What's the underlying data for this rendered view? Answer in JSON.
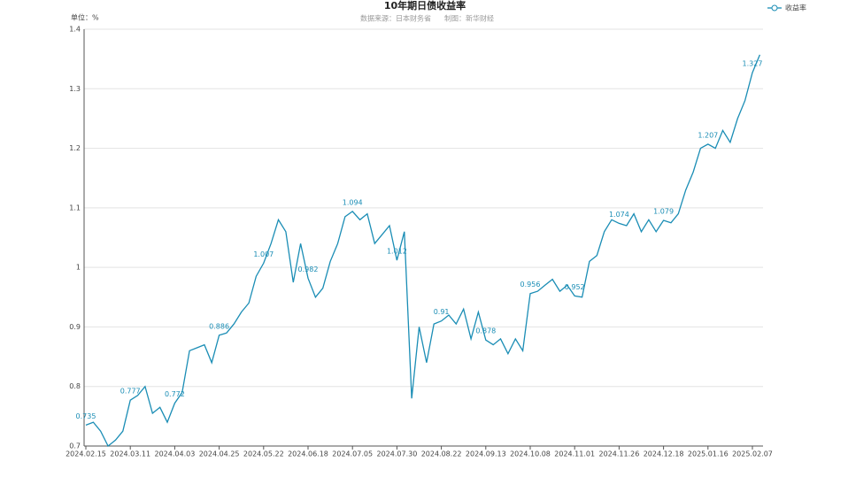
{
  "chart_data": {
    "type": "line",
    "title": "10年期日债收益率",
    "source": "数据来源：日本财务省",
    "credit": "制图：新华财经",
    "unit": "单位：%",
    "categories": [
      "2024.02.15",
      null,
      null,
      null,
      null,
      null,
      "2024.03.11",
      null,
      null,
      null,
      null,
      null,
      "2024.04.03",
      null,
      null,
      null,
      null,
      null,
      "2024.04.25",
      null,
      null,
      null,
      null,
      null,
      "2024.05.22",
      null,
      null,
      null,
      null,
      null,
      "2024.06.18",
      null,
      null,
      null,
      null,
      null,
      "2024.07.05",
      null,
      null,
      null,
      null,
      null,
      "2024.07.30",
      null,
      null,
      null,
      null,
      null,
      "2024.08.22",
      null,
      null,
      null,
      null,
      null,
      "2024.09.13",
      null,
      null,
      null,
      null,
      null,
      "2024.10.08",
      null,
      null,
      null,
      null,
      null,
      "2024.11.01",
      null,
      null,
      null,
      null,
      null,
      "2024.11.26",
      null,
      null,
      null,
      null,
      null,
      "2024.12.18",
      null,
      null,
      null,
      null,
      null,
      "2025.01.16",
      null,
      null,
      null,
      null,
      null,
      "2025.02.07",
      null
    ],
    "series": [
      {
        "name": "收益率",
        "color": "#1a8db5",
        "values": [
          0.735,
          0.74,
          0.725,
          0.7,
          0.71,
          0.725,
          0.777,
          0.785,
          0.8,
          0.755,
          0.765,
          0.74,
          0.772,
          0.79,
          0.86,
          0.865,
          0.87,
          0.84,
          0.886,
          0.89,
          0.905,
          0.925,
          0.94,
          0.985,
          1.007,
          1.04,
          1.08,
          1.06,
          0.975,
          1.04,
          0.982,
          0.95,
          0.965,
          1.01,
          1.04,
          1.085,
          1.094,
          1.08,
          1.09,
          1.04,
          1.055,
          1.07,
          1.012,
          1.06,
          0.78,
          0.9,
          0.84,
          0.905,
          0.91,
          0.92,
          0.905,
          0.93,
          0.88,
          0.925,
          0.878,
          0.87,
          0.88,
          0.855,
          0.88,
          0.86,
          0.956,
          0.96,
          0.97,
          0.98,
          0.96,
          0.97,
          0.952,
          0.95,
          1.01,
          1.02,
          1.06,
          1.08,
          1.074,
          1.07,
          1.09,
          1.06,
          1.08,
          1.06,
          1.079,
          1.075,
          1.09,
          1.13,
          1.16,
          1.2,
          1.207,
          1.2,
          1.23,
          1.21,
          1.25,
          1.28,
          1.327,
          1.357
        ]
      }
    ],
    "ylim": [
      0.7,
      1.4
    ],
    "yticks": [
      0.7,
      0.8,
      0.9,
      1,
      1.1,
      1.2,
      1.3,
      1.4
    ],
    "grid": true,
    "legend": "top-right"
  }
}
